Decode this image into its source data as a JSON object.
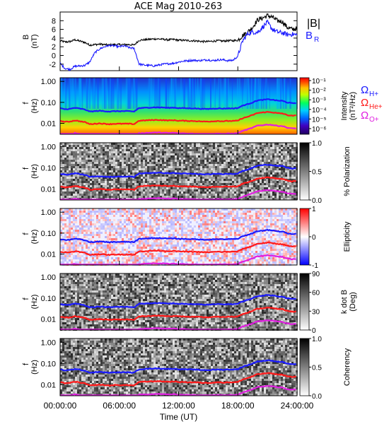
{
  "title": "ACE Mag 2010-263",
  "chart_data": [
    {
      "type": "line",
      "panel": "B-field",
      "ylabel": "B",
      "yunit": "(nT)",
      "ylim": [
        -3.5,
        10
      ],
      "yticks": [
        "-2",
        "0",
        "2",
        "4",
        "6",
        "8"
      ],
      "ytick_values": [
        -2,
        0,
        2,
        4,
        6,
        8
      ],
      "legend_labels": [
        "|B|",
        "B",
        "R"
      ],
      "series_colors": {
        "B_total": "#000000",
        "B_R": "#1a1aff"
      },
      "x": [
        0,
        0.5,
        1,
        1.5,
        2,
        2.5,
        3,
        3.5,
        4,
        4.5,
        5,
        5.5,
        6,
        6.5,
        7,
        7.5,
        8,
        8.5,
        9,
        9.5,
        10,
        10.5,
        11,
        11.5,
        12,
        12.5,
        13,
        13.5,
        14,
        14.5,
        15,
        15.5,
        16,
        16.5,
        17,
        17.5,
        18,
        18.5,
        19,
        19.5,
        20,
        20.5,
        21,
        21.5,
        22,
        22.5,
        23,
        23.5,
        24
      ],
      "series": [
        {
          "key": "B_total",
          "values": [
            3.4,
            3.1,
            3.2,
            3.6,
            3.3,
            3.0,
            2.4,
            2.5,
            2.6,
            2.5,
            2.4,
            2.5,
            2.5,
            2.5,
            2.5,
            2.4,
            3.5,
            3.6,
            3.7,
            3.8,
            3.8,
            3.7,
            3.6,
            3.7,
            3.5,
            3.5,
            3.4,
            3.4,
            3.3,
            3.2,
            3.2,
            3.3,
            3.4,
            3.3,
            3.4,
            3.4,
            3.5,
            4.6,
            5.4,
            6.5,
            8.2,
            8.6,
            9.2,
            8.8,
            8.0,
            7.8,
            6.5,
            6.0,
            6.2
          ]
        },
        {
          "key": "B_R",
          "values": [
            -1.8,
            -3.0,
            -3.2,
            -2.5,
            -2.4,
            -2.3,
            -1.5,
            0.6,
            1.5,
            2.0,
            2.3,
            2.2,
            2.0,
            2.2,
            1.8,
            1.6,
            -2.0,
            -2.2,
            -2.3,
            -2.4,
            -2.2,
            -2.0,
            -1.9,
            -1.8,
            -1.5,
            -1.3,
            -1.2,
            -1.1,
            -1.2,
            -1.1,
            -1.0,
            -1.2,
            -1.0,
            -1.0,
            -1.2,
            -1.1,
            -0.2,
            3.4,
            5.0,
            5.4,
            5.3,
            6.5,
            7.6,
            6.0,
            5.4,
            5.2,
            4.8,
            4.9,
            4.7
          ]
        }
      ]
    },
    {
      "type": "heatmap",
      "panel": "intensity",
      "colorbar_type": "rainbow",
      "colorbar_label": "Intensity",
      "colorbar_unit": "(nT²/Hz)",
      "colorbar_ticks": [
        "10⁻¹",
        "10⁻²",
        "10⁻³",
        "10⁻⁴",
        "10⁻⁵",
        "10⁻⁶"
      ],
      "colorbar_log_values": [
        -1,
        -2,
        -3,
        -4,
        -5,
        -6
      ],
      "side_labels": [
        {
          "text": "Ω",
          "sub": "H+",
          "color": "#1a1aff"
        },
        {
          "text": "Ω",
          "sub": "He+",
          "color": "#ff1a1a"
        },
        {
          "text": "Ω",
          "sub": "O+",
          "color": "#e020e0"
        }
      ]
    },
    {
      "type": "heatmap",
      "panel": "polarization",
      "colorbar_type": "gray",
      "colorbar_label": "% Polarization",
      "colorbar_unit": "",
      "colorbar_ticks": [
        "1.0",
        "0.5",
        "0.0"
      ],
      "colorbar_tick_values": [
        1.0,
        0.5,
        0.0
      ],
      "colorbar_range": [
        0,
        1
      ]
    },
    {
      "type": "heatmap",
      "panel": "ellipticity",
      "colorbar_type": "bwr",
      "colorbar_label": "Ellipticity",
      "colorbar_unit": "",
      "colorbar_ticks": [
        "1",
        "0",
        "-1"
      ],
      "colorbar_tick_values": [
        1,
        0,
        -1
      ],
      "colorbar_range": [
        -1,
        1
      ]
    },
    {
      "type": "heatmap",
      "panel": "kdotb",
      "colorbar_type": "gray",
      "colorbar_label": "k dot B",
      "colorbar_unit": "(Deg)",
      "colorbar_ticks": [
        "90",
        "60",
        "30",
        "0"
      ],
      "colorbar_tick_values": [
        90,
        60,
        30,
        0
      ],
      "colorbar_range": [
        0,
        90
      ]
    },
    {
      "type": "heatmap",
      "panel": "coherency",
      "colorbar_type": "gray",
      "colorbar_label": "Coherency",
      "colorbar_unit": "",
      "colorbar_ticks": [
        "1.0",
        "0.5",
        "0.0"
      ],
      "colorbar_tick_values": [
        1.0,
        0.5,
        0.0
      ],
      "colorbar_range": [
        0,
        1
      ]
    }
  ],
  "spectral_axis": {
    "ylabel": "f",
    "yunit": "(Hz)",
    "yticks": [
      "1.00",
      "0.10",
      "0.01"
    ],
    "ytick_values": [
      1.0,
      0.1,
      0.01
    ],
    "ylim": [
      0.003,
      1.5
    ],
    "scale": "log"
  },
  "gyrofrequency_lines": {
    "colors": {
      "H": "#1a1aff",
      "He": "#ff1a1a",
      "O": "#e020e0"
    }
  },
  "time_axis": {
    "xlabel": "Time (UT)",
    "xticks": [
      "00:00:00",
      "06:00:00",
      "12:00:00",
      "18:00:00",
      "24:00:00"
    ],
    "xtick_values": [
      0,
      6,
      12,
      18,
      24
    ],
    "xlim": [
      0,
      24
    ]
  }
}
